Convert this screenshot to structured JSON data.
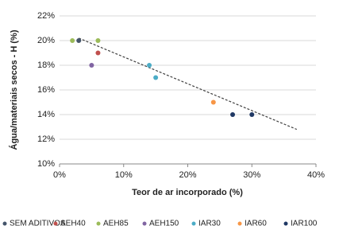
{
  "chart_data": {
    "type": "scatter",
    "x_label": "Teor de ar incorporado (%)",
    "y_label": "Água/materiais secos - H (%)",
    "xlim": [
      0,
      40
    ],
    "ylim": [
      10,
      22
    ],
    "xticks": [
      {
        "value": 0,
        "label": "0%"
      },
      {
        "value": 10,
        "label": "10%"
      },
      {
        "value": 20,
        "label": "20%"
      },
      {
        "value": 30,
        "label": "30%"
      },
      {
        "value": 40,
        "label": "40%"
      }
    ],
    "yticks": [
      {
        "value": 10,
        "label": "10%"
      },
      {
        "value": 12,
        "label": "12%"
      },
      {
        "value": 14,
        "label": "14%"
      },
      {
        "value": 16,
        "label": "16%"
      },
      {
        "value": 18,
        "label": "18%"
      },
      {
        "value": 20,
        "label": "20%"
      },
      {
        "value": 22,
        "label": "22%"
      }
    ],
    "grid": true,
    "series": [
      {
        "name": "SEM ADITIVOS",
        "color": "#44546a",
        "x": [
          3
        ],
        "values": [
          20
        ]
      },
      {
        "name": "AEH40",
        "color": "#c0504d",
        "x": [
          6
        ],
        "values": [
          19
        ]
      },
      {
        "name": "AEH85",
        "color": "#9bbb59",
        "x": [
          2,
          6
        ],
        "values": [
          20,
          20
        ]
      },
      {
        "name": "AEH150",
        "color": "#8064a2",
        "x": [
          5
        ],
        "values": [
          18
        ]
      },
      {
        "name": "IAR30",
        "color": "#4bacc6",
        "x": [
          14,
          15
        ],
        "values": [
          18,
          17
        ]
      },
      {
        "name": "IAR60",
        "color": "#f79646",
        "x": [
          24
        ],
        "values": [
          15
        ]
      },
      {
        "name": "IAR100",
        "color": "#1f3864",
        "x": [
          27,
          30
        ],
        "values": [
          14,
          14
        ]
      }
    ],
    "trendline": {
      "color": "#404040",
      "x": [
        3,
        37
      ],
      "values": [
        20.2,
        12.8
      ]
    }
  }
}
